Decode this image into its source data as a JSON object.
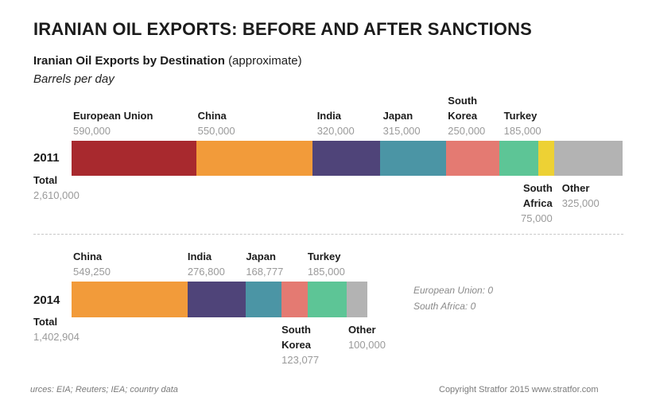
{
  "title": "IRANIAN OIL EXPORTS: BEFORE AND AFTER SANCTIONS",
  "subtitle_bold": "Iranian Oil Exports by Destination",
  "subtitle_rest": "(approximate)",
  "units": "Barrels per day",
  "total_label": "Total",
  "chart_data": {
    "type": "bar",
    "orientation": "horizontal-stacked",
    "units": "barrels per day",
    "series": [
      {
        "year": "2011",
        "total": 2610000,
        "total_text": "2,610,000",
        "segments": [
          {
            "name": "European Union",
            "value": 590000,
            "value_text": "590,000",
            "color": "#a8292e"
          },
          {
            "name": "China",
            "value": 550000,
            "value_text": "550,000",
            "color": "#f29b3a"
          },
          {
            "name": "India",
            "value": 320000,
            "value_text": "320,000",
            "color": "#4f4479"
          },
          {
            "name": "Japan",
            "value": 315000,
            "value_text": "315,000",
            "color": "#4b95a5"
          },
          {
            "name": "South Korea",
            "value": 250000,
            "value_text": "250,000",
            "color": "#e47a72"
          },
          {
            "name": "Turkey",
            "value": 185000,
            "value_text": "185,000",
            "color": "#5dc596"
          },
          {
            "name": "South Africa",
            "value": 75000,
            "value_text": "75,000",
            "color": "#edd134"
          },
          {
            "name": "Other",
            "value": 325000,
            "value_text": "325,000",
            "color": "#b3b3b3"
          }
        ]
      },
      {
        "year": "2014",
        "total": 1402904,
        "total_text": "1,402,904",
        "segments": [
          {
            "name": "China",
            "value": 549250,
            "value_text": "549,250",
            "color": "#f29b3a"
          },
          {
            "name": "India",
            "value": 276800,
            "value_text": "276,800",
            "color": "#4f4479"
          },
          {
            "name": "Japan",
            "value": 168777,
            "value_text": "168,777",
            "color": "#4b95a5"
          },
          {
            "name": "South Korea",
            "value": 123077,
            "value_text": "123,077",
            "color": "#e47a72"
          },
          {
            "name": "Turkey",
            "value": 185000,
            "value_text": "185,000",
            "color": "#5dc596"
          },
          {
            "name": "Other",
            "value": 100000,
            "value_text": "100,000",
            "color": "#b3b3b3"
          }
        ],
        "zero_notes": [
          "European Union: 0",
          "South Africa: 0"
        ]
      }
    ]
  },
  "footer": {
    "sources": "urces: EIA; Reuters; IEA; country data",
    "copyright": "Copyright Stratfor 2015   www.stratfor.com"
  }
}
